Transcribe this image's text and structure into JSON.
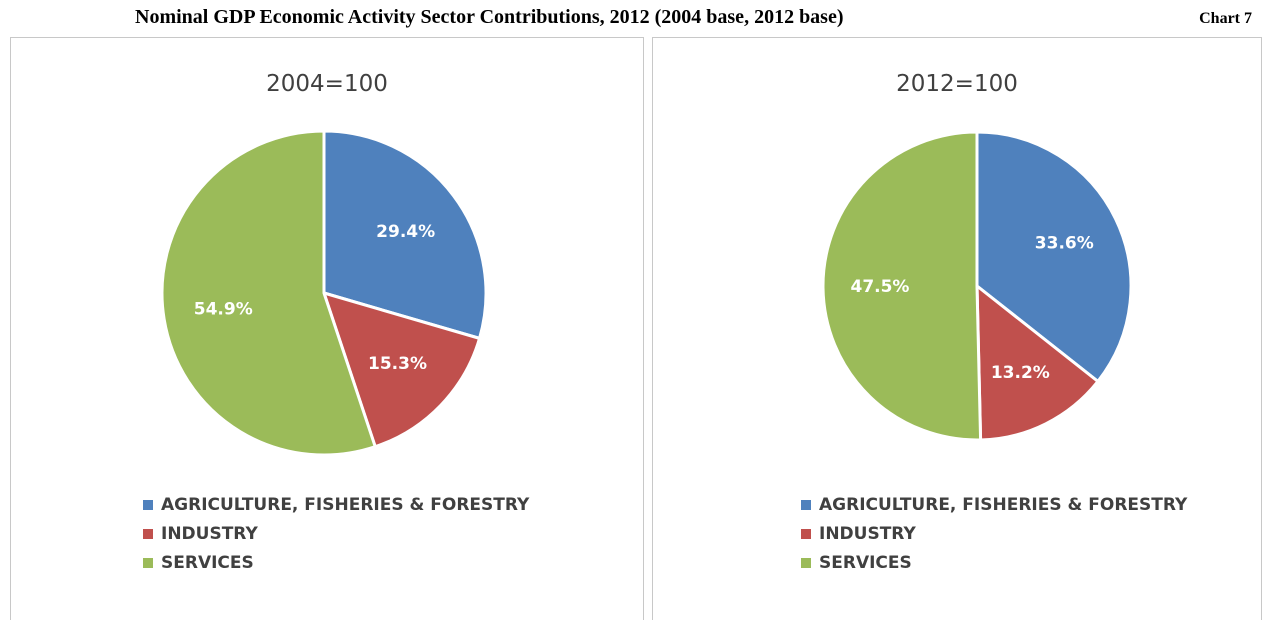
{
  "header": {
    "title": "Nominal GDP Economic Activity Sector Contributions, 2012 (2004 base, 2012 base)",
    "chart_number": "Chart 7"
  },
  "colors": {
    "agriculture": "#4f81bd",
    "industry": "#c0504d",
    "services": "#9bbb59",
    "label_text": "#ffffff"
  },
  "chart_data": [
    {
      "type": "pie",
      "title": "2004=100",
      "categories": [
        "AGRICULTURE, FISHERIES & FORESTRY",
        "INDUSTRY",
        "SERVICES"
      ],
      "values": [
        29.4,
        15.3,
        54.9
      ],
      "labels": [
        "29.4%",
        "15.3%",
        "54.9%"
      ],
      "legend": "bottom"
    },
    {
      "type": "pie",
      "title": "2012=100",
      "categories": [
        "AGRICULTURE, FISHERIES & FORESTRY",
        "INDUSTRY",
        "SERVICES"
      ],
      "values": [
        33.6,
        13.2,
        47.5
      ],
      "labels": [
        "33.6%",
        "13.2%",
        "47.5%"
      ],
      "legend": "bottom"
    }
  ]
}
